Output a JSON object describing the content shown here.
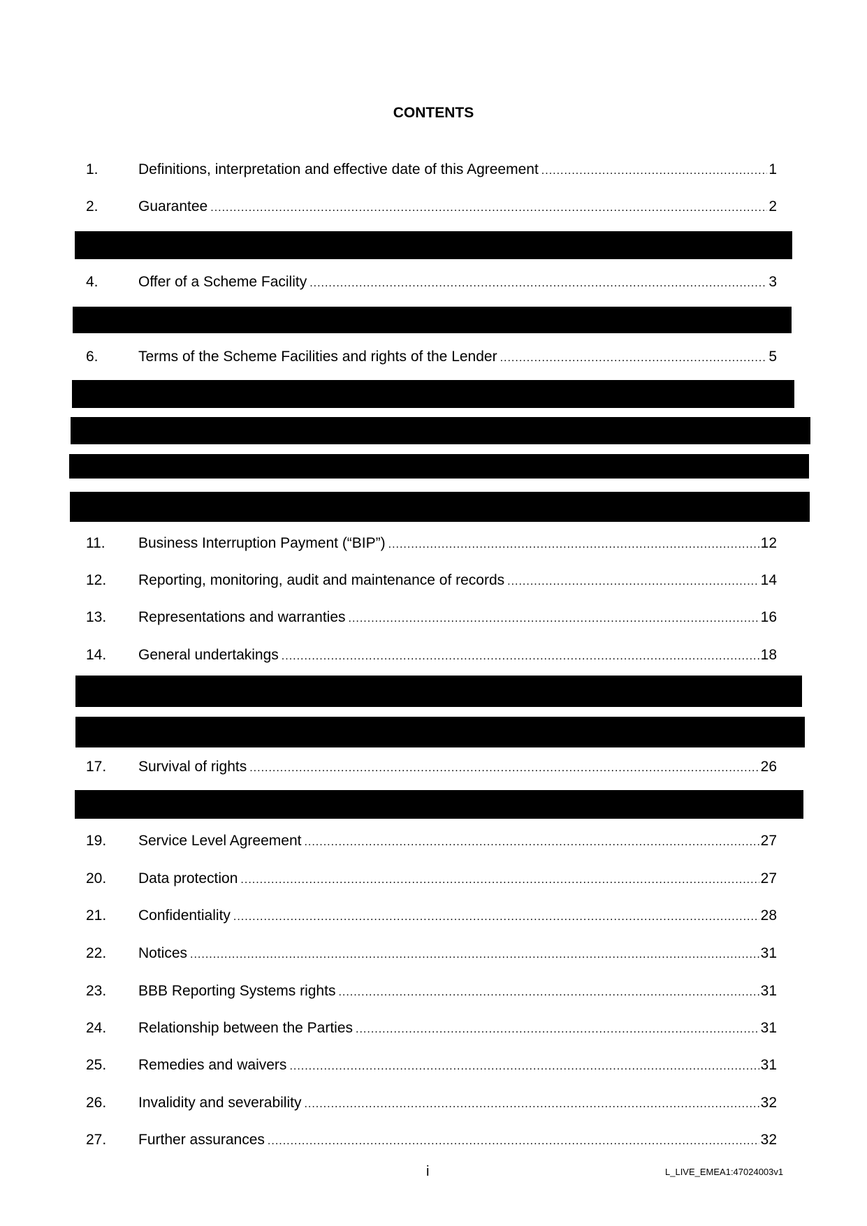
{
  "heading": "CONTENTS",
  "entries": [
    {
      "num": "1.",
      "title": "Definitions, interpretation and effective date of this Agreement",
      "page": "1"
    },
    {
      "num": "2.",
      "title": "Guarantee",
      "page": "2"
    },
    {
      "num": "4.",
      "title": "Offer of a Scheme Facility",
      "page": "3"
    },
    {
      "num": "6.",
      "title": "Terms of the Scheme Facilities and rights of the Lender",
      "page": "5"
    },
    {
      "num": "11.",
      "title": "Business Interruption Payment (“BIP”)",
      "page": "12"
    },
    {
      "num": "12.",
      "title": "Reporting, monitoring, audit and maintenance of records",
      "page": "14"
    },
    {
      "num": "13.",
      "title": "Representations and warranties",
      "page": "16"
    },
    {
      "num": "14.",
      "title": "General undertakings",
      "page": "18"
    },
    {
      "num": "17.",
      "title": "Survival of rights",
      "page": "26"
    },
    {
      "num": "19.",
      "title": "Service Level Agreement",
      "page": "27"
    },
    {
      "num": "20.",
      "title": "Data protection",
      "page": "27"
    },
    {
      "num": "21.",
      "title": "Confidentiality",
      "page": "28"
    },
    {
      "num": "22.",
      "title": "Notices",
      "page": "31"
    },
    {
      "num": "23.",
      "title": "BBB Reporting Systems rights",
      "page": "31"
    },
    {
      "num": "24.",
      "title": "Relationship between the Parties",
      "page": "31"
    },
    {
      "num": "25.",
      "title": "Remedies and waivers",
      "page": "31"
    },
    {
      "num": "26.",
      "title": "Invalidity and severability",
      "page": "32"
    },
    {
      "num": "27.",
      "title": "Further assurances",
      "page": "32"
    }
  ],
  "footer": {
    "page_number": "i",
    "doc_ref": "L_LIVE_EMEA1:47024003v1"
  }
}
